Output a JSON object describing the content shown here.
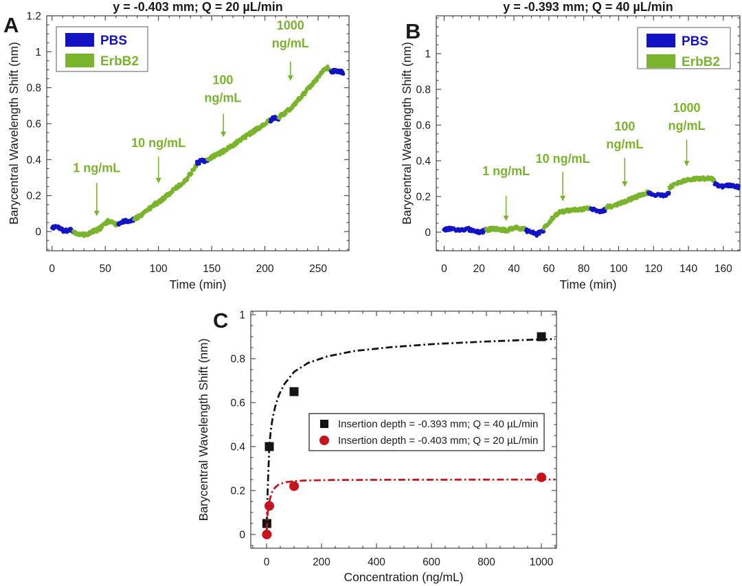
{
  "figure_title": "ErbB2 biosensing figure",
  "colors": {
    "pbs_blue": "#1313c6",
    "erbb2_green": "#7ab42c",
    "annotation_green": "#7ab42c",
    "fit_black": "#141414",
    "fit_red": "#c8131c",
    "axis": "#3f3f3f",
    "text": "#1a1a1a",
    "legend_border": "#8a8a8a",
    "background": "#ffffff"
  },
  "chart_data": [
    {
      "id": "A",
      "type": "scatter",
      "panel_label": "A",
      "title": "y = -0.403 mm; Q = 20 µL/min",
      "xlabel": "Time (min)",
      "ylabel": "Barycentral Wavelength Shift (nm)",
      "xlim": [
        -5,
        279
      ],
      "ylim": [
        -0.107,
        1.2
      ],
      "xticks": [
        0,
        50,
        100,
        150,
        200,
        250
      ],
      "xtick_labels": [
        "0",
        "50",
        "100",
        "150",
        "200",
        "250"
      ],
      "yticks": [
        0,
        0.2,
        0.4,
        0.6,
        0.8,
        1,
        1.2
      ],
      "ytick_labels": [
        "0",
        "0.2",
        "0.4",
        "0.6",
        "0.8",
        "1",
        "1.2"
      ],
      "x_minor_step": 10,
      "y_minor_step": 0.05,
      "grid": false,
      "legend": {
        "position": "top-left",
        "entries": [
          {
            "label": "PBS",
            "color_key": "pbs_blue"
          },
          {
            "label": "ErbB2",
            "color_key": "erbb2_green"
          }
        ]
      },
      "annotations": [
        {
          "lines": [
            "1 ng/mL"
          ],
          "x": 42,
          "y": 0.33,
          "arrow": {
            "x": 42,
            "y1": 0.27,
            "y2": 0.085
          }
        },
        {
          "lines": [
            "10 ng/mL"
          ],
          "x": 100,
          "y": 0.47,
          "arrow": {
            "x": 100,
            "y1": 0.415,
            "y2": 0.268
          }
        },
        {
          "lines": [
            "100",
            "ng/mL"
          ],
          "x": 160.5,
          "y": 0.82,
          "arrow": {
            "x": 161,
            "y1": 0.655,
            "y2": 0.525
          }
        },
        {
          "lines": [
            "1000",
            "ng/mL"
          ],
          "x": 224,
          "y": 1.123,
          "arrow": {
            "x": 224,
            "y1": 0.945,
            "y2": 0.838
          }
        }
      ],
      "segments": [
        {
          "series": "PBS",
          "color_key": "pbs_blue",
          "pts": [
            [
              0,
              0.02
            ],
            [
              4,
              0.03
            ],
            [
              8,
              0.015
            ],
            [
              12,
              0.0
            ],
            [
              16,
              0.012
            ],
            [
              20,
              0.005
            ]
          ]
        },
        {
          "series": "ErbB2",
          "color_key": "erbb2_green",
          "pts": [
            [
              20,
              0.0
            ],
            [
              25,
              -0.015
            ],
            [
              30,
              -0.02
            ],
            [
              34,
              -0.012
            ],
            [
              38,
              0.0
            ],
            [
              42,
              0.008
            ],
            [
              46,
              0.02
            ],
            [
              50,
              0.045
            ],
            [
              53,
              0.06
            ],
            [
              56,
              0.05
            ],
            [
              59,
              0.038
            ],
            [
              62,
              0.042
            ]
          ]
        },
        {
          "series": "PBS",
          "color_key": "pbs_blue",
          "pts": [
            [
              62,
              0.045
            ],
            [
              66,
              0.055
            ],
            [
              71,
              0.06
            ],
            [
              77,
              0.065
            ]
          ]
        },
        {
          "series": "ErbB2",
          "color_key": "erbb2_green",
          "pts": [
            [
              77,
              0.07
            ],
            [
              84,
              0.09
            ],
            [
              90,
              0.12
            ],
            [
              96,
              0.15
            ],
            [
              102,
              0.17
            ],
            [
              108,
              0.2
            ],
            [
              114,
              0.23
            ],
            [
              120,
              0.26
            ],
            [
              126,
              0.29
            ],
            [
              131,
              0.33
            ],
            [
              136,
              0.375
            ]
          ]
        },
        {
          "series": "PBS",
          "color_key": "pbs_blue",
          "pts": [
            [
              136,
              0.38
            ],
            [
              141,
              0.395
            ],
            [
              146,
              0.39
            ]
          ]
        },
        {
          "series": "ErbB2",
          "color_key": "erbb2_green",
          "pts": [
            [
              146,
              0.4
            ],
            [
              154,
              0.425
            ],
            [
              162,
              0.45
            ],
            [
              170,
              0.48
            ],
            [
              178,
              0.515
            ],
            [
              186,
              0.545
            ],
            [
              194,
              0.575
            ],
            [
              200,
              0.6
            ],
            [
              205,
              0.62
            ]
          ]
        },
        {
          "series": "PBS",
          "color_key": "pbs_blue",
          "pts": [
            [
              205,
              0.62
            ],
            [
              209,
              0.632
            ],
            [
              213,
              0.622
            ]
          ]
        },
        {
          "series": "ErbB2",
          "color_key": "erbb2_green",
          "pts": [
            [
              213,
              0.635
            ],
            [
              219,
              0.66
            ],
            [
              225,
              0.69
            ],
            [
              231,
              0.73
            ],
            [
              237,
              0.77
            ],
            [
              243,
              0.81
            ],
            [
              248,
              0.845
            ],
            [
              252,
              0.875
            ],
            [
              256,
              0.9
            ],
            [
              259,
              0.91
            ],
            [
              262,
              0.89
            ]
          ]
        },
        {
          "series": "PBS",
          "color_key": "pbs_blue",
          "pts": [
            [
              262,
              0.885
            ],
            [
              266,
              0.895
            ],
            [
              270,
              0.89
            ],
            [
              274,
              0.885
            ]
          ]
        }
      ]
    },
    {
      "id": "B",
      "type": "scatter",
      "panel_label": "B",
      "title": "y = -0.393 mm; Q = 40 µL/min",
      "xlabel": "Time (min)",
      "ylabel": "Barycentral Wavelength Shift (nm)",
      "xlim": [
        -4.5,
        169.5
      ],
      "ylim": [
        -0.104,
        1.212
      ],
      "xticks": [
        0,
        20,
        40,
        60,
        80,
        100,
        120,
        140,
        160
      ],
      "xtick_labels": [
        "0",
        "20",
        "40",
        "60",
        "80",
        "100",
        "120",
        "140",
        "160"
      ],
      "yticks": [
        0,
        0.2,
        0.4,
        0.6,
        0.8,
        1
      ],
      "ytick_labels": [
        "0",
        "0.2",
        "0.4",
        "0.6",
        "0.8",
        "1"
      ],
      "x_minor_step": 5,
      "y_minor_step": 0.05,
      "grid": false,
      "legend": {
        "position": "top-right",
        "entries": [
          {
            "label": "PBS",
            "color_key": "pbs_blue"
          },
          {
            "label": "ErbB2",
            "color_key": "erbb2_green"
          }
        ]
      },
      "annotations": [
        {
          "lines": [
            "1 ng/mL"
          ],
          "x": 35.5,
          "y": 0.319,
          "arrow": {
            "x": 35.5,
            "y1": 0.204,
            "y2": 0.062
          }
        },
        {
          "lines": [
            "10 ng/mL"
          ],
          "x": 68,
          "y": 0.389,
          "arrow": {
            "x": 68,
            "y1": 0.338,
            "y2": 0.173
          }
        },
        {
          "lines": [
            "100",
            "ng/mL"
          ],
          "x": 103.5,
          "y": 0.569,
          "arrow": {
            "x": 103.5,
            "y1": 0.415,
            "y2": 0.254
          }
        },
        {
          "lines": [
            "1000",
            "ng/mL"
          ],
          "x": 139,
          "y": 0.673,
          "arrow": {
            "x": 139,
            "y1": 0.519,
            "y2": 0.369
          }
        }
      ],
      "segments": [
        {
          "series": "PBS",
          "color_key": "pbs_blue",
          "pts": [
            [
              0,
              0.015
            ],
            [
              5,
              0.02
            ],
            [
              9,
              0.01
            ],
            [
              13,
              0.02
            ],
            [
              17,
              0.008
            ],
            [
              21,
              0.0
            ],
            [
              24,
              0.012
            ]
          ]
        },
        {
          "series": "ErbB2",
          "color_key": "erbb2_green",
          "pts": [
            [
              24,
              0.01
            ],
            [
              28,
              0.02
            ],
            [
              32,
              0.015
            ],
            [
              36,
              0.01
            ],
            [
              40,
              0.025
            ],
            [
              44,
              0.02
            ],
            [
              47,
              0.015
            ]
          ]
        },
        {
          "series": "PBS",
          "color_key": "pbs_blue",
          "pts": [
            [
              47,
              0.01
            ],
            [
              50,
              0.0
            ],
            [
              53,
              -0.012
            ],
            [
              56,
              0.005
            ],
            [
              57,
              0.01
            ]
          ]
        },
        {
          "series": "ErbB2",
          "color_key": "erbb2_green",
          "pts": [
            [
              57,
              0.02
            ],
            [
              60,
              0.05
            ],
            [
              63,
              0.09
            ],
            [
              66,
              0.11
            ],
            [
              70,
              0.12
            ],
            [
              74,
              0.125
            ],
            [
              78,
              0.128
            ],
            [
              84,
              0.135
            ]
          ]
        },
        {
          "series": "PBS",
          "color_key": "pbs_blue",
          "pts": [
            [
              84,
              0.13
            ],
            [
              87,
              0.122
            ],
            [
              90,
              0.118
            ],
            [
              93,
              0.128
            ]
          ]
        },
        {
          "series": "ErbB2",
          "color_key": "erbb2_green",
          "pts": [
            [
              93,
              0.14
            ],
            [
              98,
              0.15
            ],
            [
              103,
              0.17
            ],
            [
              108,
              0.19
            ],
            [
              112,
              0.205
            ],
            [
              115,
              0.215
            ],
            [
              117,
              0.225
            ]
          ]
        },
        {
          "series": "PBS",
          "color_key": "pbs_blue",
          "pts": [
            [
              117,
              0.22
            ],
            [
              121,
              0.21
            ],
            [
              125,
              0.205
            ],
            [
              129,
              0.215
            ]
          ]
        },
        {
          "series": "ErbB2",
          "color_key": "erbb2_green",
          "pts": [
            [
              129,
              0.25
            ],
            [
              133,
              0.27
            ],
            [
              137,
              0.285
            ],
            [
              141,
              0.295
            ],
            [
              145,
              0.3
            ],
            [
              149,
              0.3
            ],
            [
              152,
              0.305
            ],
            [
              155,
              0.29
            ]
          ]
        },
        {
          "series": "PBS",
          "color_key": "pbs_blue",
          "pts": [
            [
              155,
              0.27
            ],
            [
              159,
              0.255
            ],
            [
              163,
              0.26
            ],
            [
              166,
              0.262
            ],
            [
              169,
              0.25
            ]
          ]
        }
      ]
    },
    {
      "id": "C",
      "type": "scatter+fit",
      "panel_label": "C",
      "title": "",
      "xlabel": "Concentration (ng/mL)",
      "ylabel": "Barycentral Wavelength Shift (nm)",
      "xlim": [
        -57.5,
        1055
      ],
      "ylim": [
        -0.0625,
        1.016
      ],
      "xticks": [
        0,
        200,
        400,
        600,
        800,
        1000
      ],
      "xtick_labels": [
        "0",
        "200",
        "400",
        "600",
        "800",
        "1000"
      ],
      "yticks": [
        0,
        0.2,
        0.4,
        0.6,
        0.8,
        1
      ],
      "ytick_labels": [
        "0",
        "0.2",
        "0.4",
        "0.6",
        "0.8",
        "1"
      ],
      "x_minor_step": 50,
      "y_minor_step": 0.05,
      "grid": false,
      "legend": {
        "position": "center",
        "entries": [
          {
            "label": "Insertion depth = -0.393 mm; Q = 40 µL/min",
            "marker": "square",
            "color_key": "fit_black"
          },
          {
            "label": "Insertion depth = -0.403 mm; Q = 20 µL/min",
            "marker": "circle",
            "color_key": "fit_red"
          }
        ]
      },
      "series": [
        {
          "name": "Insertion depth = -0.393 mm; Q = 40 µL/min",
          "marker": "square",
          "color_key": "fit_black",
          "x": [
            1,
            10,
            100,
            1000
          ],
          "y": [
            0.05,
            0.4,
            0.65,
            0.9
          ],
          "fit_style": "dash-dot",
          "fit_curve": [
            [
              0.8,
              0.05
            ],
            [
              2,
              0.11
            ],
            [
              4,
              0.2
            ],
            [
              7,
              0.3
            ],
            [
              10,
              0.4
            ],
            [
              15,
              0.47
            ],
            [
              22,
              0.53
            ],
            [
              32,
              0.585
            ],
            [
              45,
              0.635
            ],
            [
              65,
              0.685
            ],
            [
              100,
              0.74
            ],
            [
              150,
              0.78
            ],
            [
              220,
              0.81
            ],
            [
              320,
              0.835
            ],
            [
              450,
              0.852
            ],
            [
              600,
              0.866
            ],
            [
              780,
              0.877
            ],
            [
              1000,
              0.888
            ],
            [
              1050,
              0.889
            ]
          ]
        },
        {
          "name": "Insertion depth = -0.403 mm; Q = 20 µL/min",
          "marker": "circle",
          "color_key": "fit_red",
          "x": [
            1,
            10,
            100,
            1000
          ],
          "y": [
            0.0,
            0.13,
            0.22,
            0.26
          ],
          "fit_style": "dash-dot",
          "fit_curve": [
            [
              0.8,
              0.02
            ],
            [
              2,
              0.06
            ],
            [
              4,
              0.1
            ],
            [
              7,
              0.13
            ],
            [
              10,
              0.15
            ],
            [
              15,
              0.175
            ],
            [
              22,
              0.2
            ],
            [
              32,
              0.215
            ],
            [
              45,
              0.228
            ],
            [
              65,
              0.237
            ],
            [
              100,
              0.243
            ],
            [
              150,
              0.246
            ],
            [
              250,
              0.248
            ],
            [
              500,
              0.249
            ],
            [
              1000,
              0.25
            ],
            [
              1050,
              0.25
            ]
          ]
        }
      ]
    }
  ]
}
